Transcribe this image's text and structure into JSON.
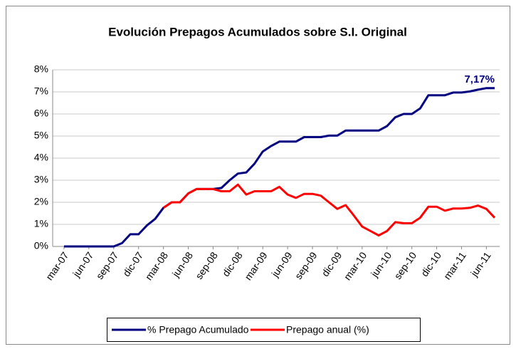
{
  "chart_data": {
    "type": "line",
    "title": "Evolución Prepagos Acumulados sobre S.I. Original",
    "categories": [
      "mar-07",
      null,
      null,
      "jun-07",
      null,
      null,
      "sep-07",
      null,
      null,
      "dic-07",
      null,
      null,
      "mar-08",
      null,
      null,
      "jun-08",
      null,
      null,
      "sep-08",
      null,
      null,
      "dic-08",
      null,
      null,
      "mar-09",
      null,
      null,
      "jun-09",
      null,
      null,
      "sep-09",
      null,
      null,
      "dic-09",
      null,
      null,
      "mar-10",
      null,
      null,
      "jun-10",
      null,
      null,
      "sep-10",
      null,
      null,
      "dic-10",
      null,
      null,
      "mar-11",
      null,
      null,
      "jun-11",
      null
    ],
    "series": [
      {
        "name": "% Prepago Acumulado",
        "color": "#000080",
        "values": [
          0,
          0,
          0,
          0,
          0,
          0,
          0,
          0.15,
          0.55,
          0.55,
          0.95,
          1.25,
          1.75,
          2.0,
          2.0,
          2.4,
          2.6,
          2.6,
          2.6,
          2.65,
          3.0,
          3.3,
          3.35,
          3.75,
          4.3,
          4.55,
          4.75,
          4.75,
          4.75,
          4.95,
          4.95,
          4.95,
          5.02,
          5.02,
          5.25,
          5.25,
          5.25,
          5.25,
          5.25,
          5.45,
          5.85,
          6.0,
          6.0,
          6.25,
          6.85,
          6.85,
          6.85,
          6.97,
          6.97,
          7.02,
          7.1,
          7.17,
          7.17
        ]
      },
      {
        "name": "Prepago anual (%)",
        "color": "#ff0000",
        "values": [
          null,
          null,
          null,
          null,
          null,
          null,
          null,
          null,
          null,
          null,
          null,
          null,
          1.75,
          2.0,
          2.0,
          2.4,
          2.6,
          2.6,
          2.6,
          2.5,
          2.5,
          2.8,
          2.35,
          2.5,
          2.5,
          2.5,
          2.7,
          2.35,
          2.2,
          2.38,
          2.38,
          2.3,
          2.0,
          1.7,
          1.87,
          1.4,
          0.9,
          0.7,
          0.5,
          0.7,
          1.1,
          1.05,
          1.05,
          1.3,
          1.8,
          1.8,
          1.62,
          1.72,
          1.72,
          1.75,
          1.85,
          1.7,
          1.3
        ]
      }
    ],
    "annotation": "7,17%",
    "ylim": [
      0,
      8
    ],
    "yticks": [
      {
        "value": 0,
        "label": "0%"
      },
      {
        "value": 1,
        "label": "1%"
      },
      {
        "value": 2,
        "label": "2%"
      },
      {
        "value": 3,
        "label": "3%"
      },
      {
        "value": 4,
        "label": "4%"
      },
      {
        "value": 5,
        "label": "5%"
      },
      {
        "value": 6,
        "label": "6%"
      },
      {
        "value": 7,
        "label": "7%"
      },
      {
        "value": 8,
        "label": "8%"
      }
    ],
    "grid": true,
    "legend": "bottom"
  }
}
